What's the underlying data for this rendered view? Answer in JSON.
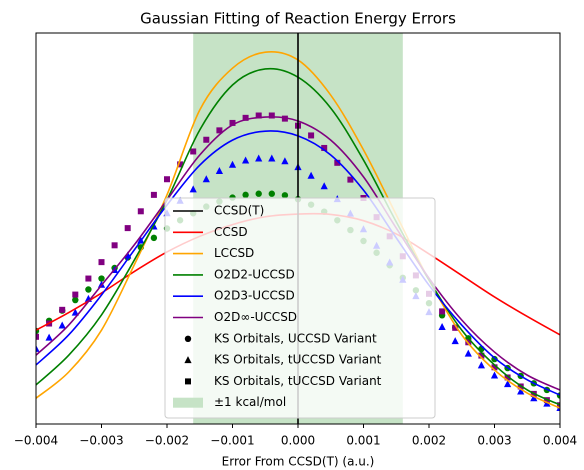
{
  "chart_data": {
    "type": "line",
    "title": "Gaussian Fitting of Reaction Energy Errors",
    "xlabel": "Error From CCSD(T) (a.u.)",
    "xlim": [
      -0.004,
      0.004
    ],
    "xticks": [
      {
        "value": -0.004,
        "label": "−0.004"
      },
      {
        "value": -0.003,
        "label": "−0.003"
      },
      {
        "value": -0.002,
        "label": "−0.002"
      },
      {
        "value": -0.001,
        "label": "−0.001"
      },
      {
        "value": 0,
        "label": "0.000"
      },
      0.001,
      0.002,
      0.003,
      0.004
    ],
    "ylim": [
      0,
      100
    ],
    "legend": "lower center",
    "band": {
      "name": "±1 kcal/mol",
      "color": "#c6e3c6",
      "range": [
        -0.0016,
        0.0016
      ]
    },
    "reference": {
      "name": "CCSD(T)",
      "color": "#000000",
      "x": 0
    },
    "x": [
      -0.004,
      -0.0035,
      -0.003,
      -0.0025,
      -0.002,
      -0.0015,
      -0.001,
      -0.0005,
      0,
      0.0005,
      0.001,
      0.0015,
      0.002,
      0.0025,
      0.003,
      0.0035,
      0.004
    ],
    "series": [
      {
        "name": "CCSD",
        "color": "#ff0000",
        "values": [
          24,
          28.5,
          33.5,
          39,
          44,
          48,
          51,
          53,
          53.7,
          53.6,
          52,
          48.6,
          43.5,
          38,
          32.5,
          27.5,
          22.8
        ]
      },
      {
        "name": "LCCSD",
        "color": "#ffa500",
        "values": [
          6.6,
          13.3,
          24,
          40.7,
          58.6,
          80.3,
          91,
          95.1,
          93.1,
          84.1,
          70.1,
          53.5,
          36.8,
          22.8,
          13.8,
          7.9,
          4.1
        ]
      },
      {
        "name": "O2D2-UCCSD",
        "color": "#008000",
        "values": [
          10,
          17.6,
          27.9,
          41.9,
          57.3,
          75.2,
          86.7,
          90.8,
          88.7,
          80.8,
          67.5,
          51.7,
          36.8,
          24,
          15.1,
          8.7,
          4.9
        ]
      },
      {
        "name": "O2D3-UCCSD",
        "color": "#0000ff",
        "values": [
          15.1,
          22.8,
          33,
          44.5,
          56,
          66.2,
          72.6,
          74.9,
          73.7,
          68.8,
          59.8,
          47.6,
          35.5,
          25.3,
          16.9,
          11.3,
          7.4
        ]
      },
      {
        "name": "O2D∞-UCCSD",
        "color": "#800080",
        "values": [
          17.6,
          25.3,
          35.5,
          45.8,
          57.3,
          68.8,
          76.5,
          78.5,
          77.5,
          72.6,
          63.2,
          50.1,
          37.3,
          26.6,
          18.4,
          12.5,
          8.7
        ]
      }
    ],
    "scatter": {
      "x": [
        -0.004,
        -0.0038,
        -0.0036,
        -0.0034,
        -0.0032,
        -0.003,
        -0.0028,
        -0.0026,
        -0.0024,
        -0.0022,
        -0.002,
        -0.0018,
        -0.0016,
        -0.0014,
        -0.0012,
        -0.001,
        -0.0008,
        -0.0006,
        -0.0004,
        -0.0002,
        0,
        0.0002,
        0.0004,
        0.0006,
        0.0008,
        0.001,
        0.0012,
        0.0014,
        0.0016,
        0.0018,
        0.002,
        0.0022,
        0.0024,
        0.0026,
        0.0028,
        0.003,
        0.0032,
        0.0034,
        0.0036,
        0.0038,
        0.004
      ],
      "series": [
        {
          "name": "KS Orbitals, UCCSD Variant",
          "marker": "circle",
          "color": "#008000",
          "values": [
            23.8,
            26.4,
            29.0,
            31.7,
            34.4,
            37.2,
            39.9,
            42.6,
            45.2,
            47.6,
            50.0,
            52.1,
            53.9,
            55.6,
            56.9,
            57.9,
            58.6,
            58.9,
            58.9,
            58.5,
            57.5,
            56.1,
            54.3,
            52.1,
            49.6,
            46.8,
            43.8,
            40.6,
            37.4,
            34.2,
            30.9,
            27.8,
            24.7,
            21.9,
            19.2,
            16.6,
            14.3,
            12.3,
            10.4,
            8.7,
            7.3
          ]
        },
        {
          "name": "KS Orbitals, tUCCSD Variant",
          "marker": "triangle",
          "color": "#0000ff",
          "values": [
            19.2,
            22.1,
            25.2,
            28.5,
            32.0,
            35.6,
            39.4,
            43.1,
            46.9,
            50.5,
            53.9,
            57.1,
            60.0,
            62.6,
            64.7,
            66.3,
            67.4,
            67.9,
            67.9,
            67.2,
            65.7,
            63.5,
            60.8,
            57.5,
            53.8,
            49.8,
            45.6,
            41.3,
            36.9,
            32.7,
            28.6,
            24.8,
            21.2,
            18.0,
            15.0,
            12.4,
            10.2,
            8.3,
            6.6,
            5.2,
            4.1
          ]
        },
        {
          "name": "KS Orbitals, tUCCSD Variant",
          "marker": "square",
          "color": "#800080",
          "values": [
            22.3,
            25.7,
            29.2,
            33.1,
            37.2,
            41.4,
            45.7,
            50.1,
            54.4,
            58.6,
            62.6,
            66.4,
            69.7,
            72.7,
            75.1,
            77.0,
            78.3,
            78.9,
            78.9,
            78.1,
            76.3,
            73.8,
            70.6,
            66.8,
            62.5,
            57.8,
            52.9,
            48.0,
            42.9,
            38.0,
            33.3,
            28.8,
            24.6,
            20.9,
            17.5,
            14.5,
            11.9,
            9.6,
            7.7,
            6.1,
            4.8
          ]
        }
      ]
    }
  }
}
